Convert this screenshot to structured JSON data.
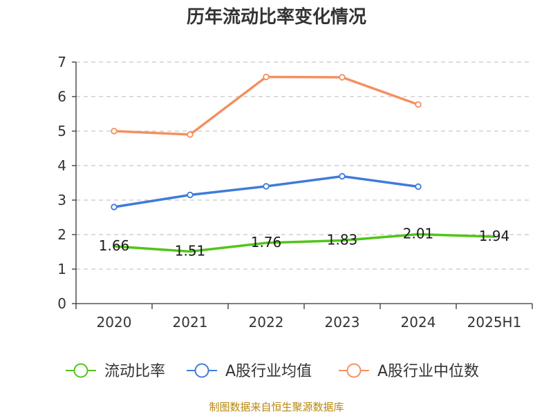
{
  "chart_data": {
    "type": "line",
    "title": "历年流动比率变化情况",
    "categories": [
      "2020",
      "2021",
      "2022",
      "2023",
      "2024",
      "2025H1"
    ],
    "ylim": [
      0,
      7
    ],
    "yticks": [
      "0",
      "1",
      "2",
      "3",
      "4",
      "5",
      "6",
      "7"
    ],
    "grid": true,
    "legend_position": "bottom",
    "series": [
      {
        "name": "流动比率",
        "color": "#52c41a",
        "values": [
          1.66,
          1.51,
          1.76,
          1.83,
          2.01,
          1.94
        ],
        "labels": [
          "1.66",
          "1.51",
          "1.76",
          "1.83",
          "2.01",
          "1.94"
        ],
        "markers": false
      },
      {
        "name": "A股行业均值",
        "color": "#3f7bd9",
        "values": [
          2.8,
          3.15,
          3.4,
          3.69,
          3.39,
          null
        ],
        "markers": true
      },
      {
        "name": "A股行业中位数",
        "color": "#f39060",
        "values": [
          5.0,
          4.9,
          6.57,
          6.56,
          5.77,
          null
        ],
        "markers": true
      }
    ],
    "source": "制图数据来自恒生聚源数据库"
  }
}
